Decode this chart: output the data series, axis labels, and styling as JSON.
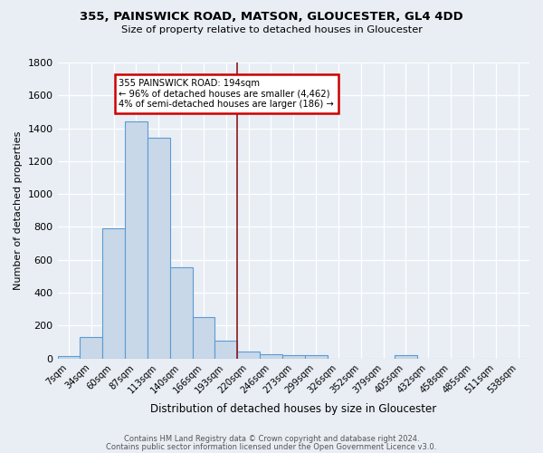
{
  "title": "355, PAINSWICK ROAD, MATSON, GLOUCESTER, GL4 4DD",
  "subtitle": "Size of property relative to detached houses in Gloucester",
  "xlabel": "Distribution of detached houses by size in Gloucester",
  "ylabel": "Number of detached properties",
  "bar_labels": [
    "7sqm",
    "34sqm",
    "60sqm",
    "87sqm",
    "113sqm",
    "140sqm",
    "166sqm",
    "193sqm",
    "220sqm",
    "246sqm",
    "273sqm",
    "299sqm",
    "326sqm",
    "352sqm",
    "379sqm",
    "405sqm",
    "432sqm",
    "458sqm",
    "485sqm",
    "511sqm",
    "538sqm"
  ],
  "bar_values": [
    15,
    130,
    790,
    1440,
    1345,
    555,
    250,
    110,
    40,
    28,
    22,
    18,
    0,
    0,
    0,
    20,
    0,
    0,
    0,
    0,
    0
  ],
  "bar_color": "#c8d8e8",
  "bar_edge_color": "#5b9bd5",
  "vline_color": "#8b1a1a",
  "annotation_title": "355 PAINSWICK ROAD: 194sqm",
  "annotation_line1": "← 96% of detached houses are smaller (4,462)",
  "annotation_line2": "4% of semi-detached houses are larger (186) →",
  "annotation_box_color": "#ffffff",
  "annotation_box_edge": "#cc0000",
  "ylim": [
    0,
    1800
  ],
  "yticks": [
    0,
    200,
    400,
    600,
    800,
    1000,
    1200,
    1400,
    1600,
    1800
  ],
  "bg_color": "#e8eef4",
  "grid_color": "#ffffff",
  "footer1": "Contains HM Land Registry data © Crown copyright and database right 2024.",
  "footer2": "Contains public sector information licensed under the Open Government Licence v3.0."
}
